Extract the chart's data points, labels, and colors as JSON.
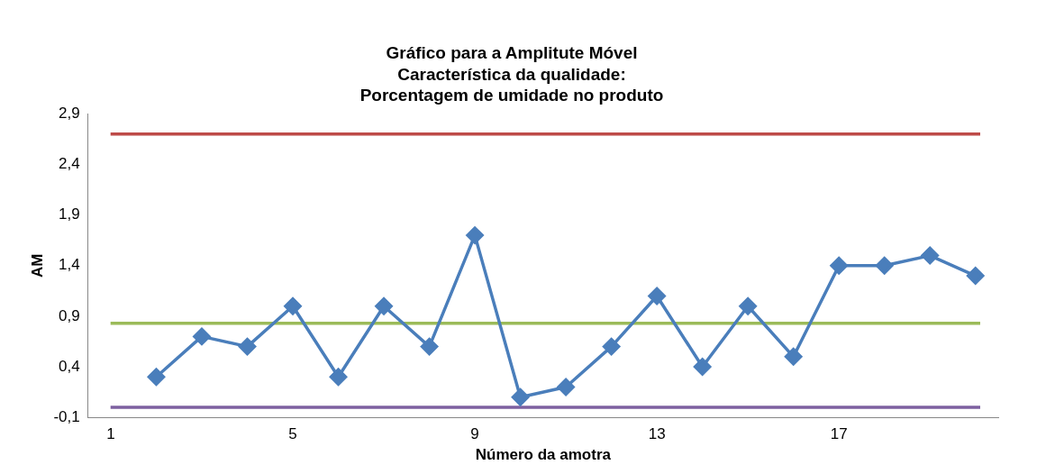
{
  "chart_data": {
    "type": "line",
    "title": "Gráfico para a Amplitute Móvel",
    "subtitle": "Característica da qualidade:\nPorcentagem de umidade no produto",
    "xlabel": "Número da amotra",
    "ylabel": "AM",
    "x": [
      2,
      3,
      4,
      5,
      6,
      7,
      8,
      9,
      10,
      11,
      12,
      13,
      14,
      15,
      16,
      17,
      18,
      19,
      20
    ],
    "series": [
      {
        "color": "#4a7ebb",
        "values": [
          0.3,
          0.7,
          0.6,
          1.0,
          0.3,
          1.0,
          0.6,
          1.7,
          0.1,
          0.2,
          0.6,
          1.1,
          0.4,
          1.0,
          0.5,
          1.4,
          1.4,
          1.5,
          1.3
        ]
      }
    ],
    "xlim": [
      0.5,
      20.5
    ],
    "xticks": [
      1,
      5,
      9,
      13,
      17
    ],
    "ylim": [
      -0.1,
      2.9
    ],
    "yticks": [
      {
        "value": -0.1,
        "label": "-0,1"
      },
      {
        "value": 0.4,
        "label": "0,4"
      },
      {
        "value": 0.9,
        "label": "0,9"
      },
      {
        "value": 1.4,
        "label": "1,4"
      },
      {
        "value": 1.9,
        "label": "1,9"
      },
      {
        "value": 2.4,
        "label": "2,4"
      },
      {
        "value": 2.9,
        "label": "2,9"
      }
    ],
    "ref_lines": [
      {
        "axis": "y",
        "value": 2.7,
        "color": "#be4b48"
      },
      {
        "axis": "y",
        "value": 0.83,
        "color": "#9bbb59"
      },
      {
        "axis": "y",
        "value": 0,
        "color": "#7d60a0"
      }
    ],
    "grid": false,
    "legend": false,
    "marker": "diamond",
    "line_style": "solid"
  }
}
